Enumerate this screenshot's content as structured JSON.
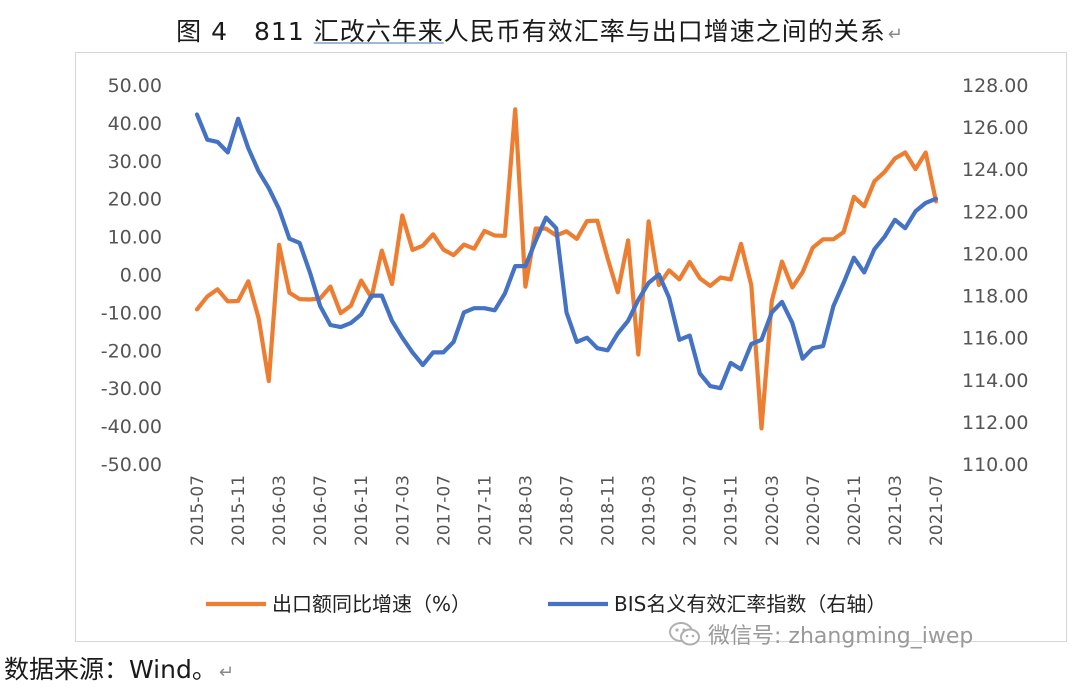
{
  "title": {
    "figure_label": "图 4",
    "text_before": "811",
    "text_underlined": "汇改六年来",
    "text_after": "人民币有效汇率与出口增速之间的关系"
  },
  "return_mark": "↵",
  "source": "数据来源：Wind。",
  "watermark": {
    "text": "微信号: zhangming_iwep",
    "icon": "wechat-icon"
  },
  "chart_data": {
    "type": "line",
    "dual_axis": true,
    "x": [
      "2015-07",
      "2015-08",
      "2015-09",
      "2015-10",
      "2015-11",
      "2015-12",
      "2016-01",
      "2016-02",
      "2016-03",
      "2016-04",
      "2016-05",
      "2016-06",
      "2016-07",
      "2016-08",
      "2016-09",
      "2016-10",
      "2016-11",
      "2016-12",
      "2017-01",
      "2017-02",
      "2017-03",
      "2017-04",
      "2017-05",
      "2017-06",
      "2017-07",
      "2017-08",
      "2017-09",
      "2017-10",
      "2017-11",
      "2017-12",
      "2018-01",
      "2018-02",
      "2018-03",
      "2018-04",
      "2018-05",
      "2018-06",
      "2018-07",
      "2018-08",
      "2018-09",
      "2018-10",
      "2018-11",
      "2018-12",
      "2019-01",
      "2019-02",
      "2019-03",
      "2019-04",
      "2019-05",
      "2019-06",
      "2019-07",
      "2019-08",
      "2019-09",
      "2019-10",
      "2019-11",
      "2019-12",
      "2020-01",
      "2020-02",
      "2020-03",
      "2020-04",
      "2020-05",
      "2020-06",
      "2020-07",
      "2020-08",
      "2020-09",
      "2020-10",
      "2020-11",
      "2020-12",
      "2021-01",
      "2021-02",
      "2021-03",
      "2021-04",
      "2021-05",
      "2021-06",
      "2021-07"
    ],
    "x_tick_labels": [
      "2015-07",
      "2015-11",
      "2016-03",
      "2016-07",
      "2016-11",
      "2017-03",
      "2017-07",
      "2017-11",
      "2018-03",
      "2018-07",
      "2018-11",
      "2019-03",
      "2019-07",
      "2019-11",
      "2020-03",
      "2020-07",
      "2020-11",
      "2021-03",
      "2021-07"
    ],
    "y_left": {
      "min": -50,
      "max": 50,
      "ticks": [
        "50.00",
        "40.00",
        "30.00",
        "20.00",
        "10.00",
        "0.00",
        "-10.00",
        "-20.00",
        "-30.00",
        "-40.00",
        "-50.00"
      ]
    },
    "y_right": {
      "min": 110,
      "max": 128,
      "ticks": [
        "128.00",
        "126.00",
        "124.00",
        "122.00",
        "120.00",
        "118.00",
        "116.00",
        "114.00",
        "112.00",
        "110.00"
      ]
    },
    "series": [
      {
        "name": "出口额同比增速（%）",
        "axis": "left",
        "color": "#ed7d31",
        "values": [
          -9.2,
          -5.8,
          -3.9,
          -7.1,
          -7.0,
          -1.8,
          -11.5,
          -28.1,
          7.8,
          -4.8,
          -6.5,
          -6.6,
          -6.3,
          -3.2,
          -10.2,
          -8.2,
          -1.6,
          -6.1,
          6.3,
          -2.5,
          15.6,
          6.5,
          7.6,
          10.6,
          6.6,
          5.1,
          7.9,
          6.8,
          11.5,
          10.3,
          10.2,
          43.6,
          -3.2,
          12.1,
          12.1,
          10.3,
          11.4,
          9.4,
          14.1,
          14.2,
          4.3,
          -4.7,
          9.0,
          -21.1,
          14.0,
          -2.8,
          1.1,
          -1.3,
          3.3,
          -1.0,
          -3.0,
          -0.8,
          -1.3,
          8.1,
          -2.8,
          -40.6,
          -7.0,
          3.4,
          -3.4,
          0.6,
          7.1,
          9.3,
          9.3,
          11.2,
          20.5,
          18.0,
          24.6,
          27.1,
          30.6,
          32.2,
          27.8,
          32.2,
          19.3
        ]
      },
      {
        "name": "BIS名义有效汇率指数（右轴）",
        "axis": "right",
        "color": "#4472c4",
        "values": [
          126.6,
          125.4,
          125.3,
          124.8,
          126.4,
          125.0,
          123.9,
          123.1,
          122.1,
          120.7,
          120.5,
          119.1,
          117.5,
          116.6,
          116.5,
          116.7,
          117.1,
          118.0,
          118.0,
          116.8,
          116.0,
          115.3,
          114.7,
          115.3,
          115.3,
          115.8,
          117.2,
          117.4,
          117.4,
          117.3,
          118.1,
          119.4,
          119.4,
          120.6,
          121.7,
          121.2,
          117.2,
          115.8,
          116.0,
          115.5,
          115.4,
          116.2,
          116.8,
          117.8,
          118.6,
          119.0,
          117.9,
          115.9,
          116.1,
          114.3,
          113.7,
          113.6,
          114.8,
          114.5,
          115.7,
          115.9,
          117.2,
          117.7,
          116.7,
          115.0,
          115.5,
          115.6,
          117.5,
          118.6,
          119.8,
          119.1,
          120.2,
          120.8,
          121.6,
          121.2,
          122.0,
          122.4,
          122.6
        ]
      }
    ],
    "legend": {
      "position": "bottom"
    }
  }
}
